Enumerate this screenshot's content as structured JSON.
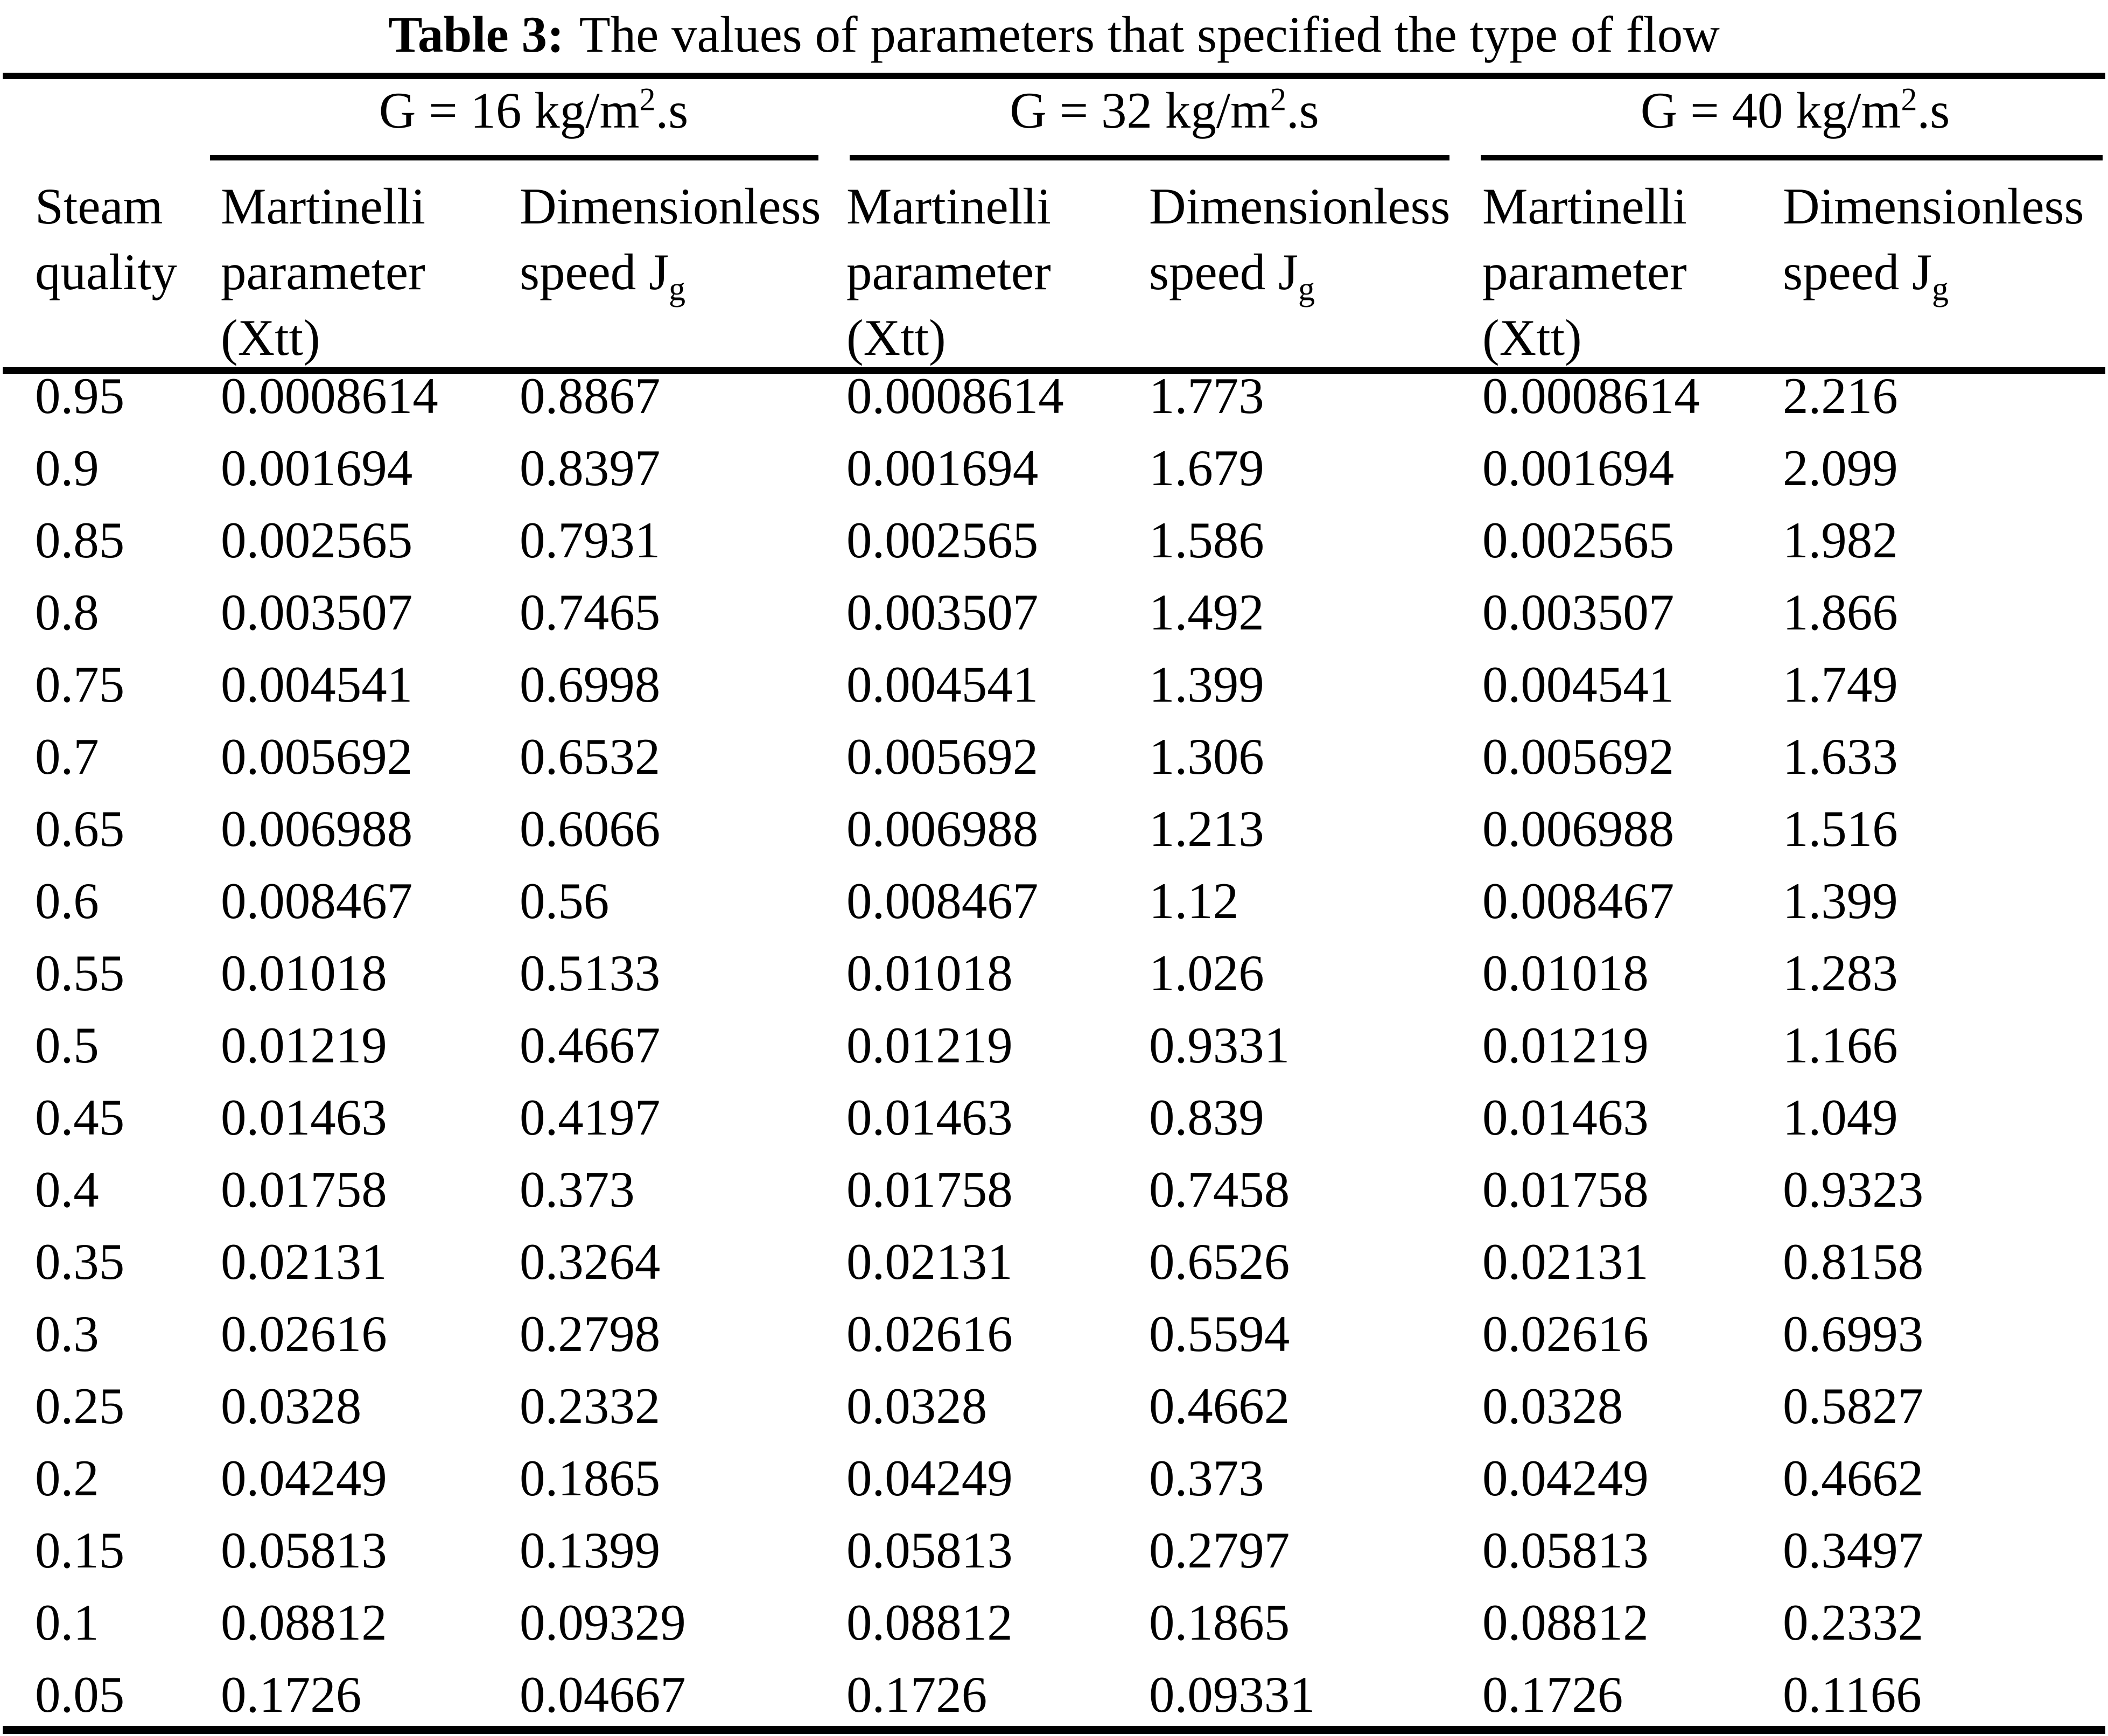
{
  "caption": {
    "label": "Table 3:",
    "text": "The values of parameters that specified the type of flow"
  },
  "colors": {
    "text": "#000000",
    "background": "#ffffff"
  },
  "table": {
    "corner_header": "Steam quality",
    "groups": [
      {
        "prefix": "G = 16 kg/m",
        "sup": "2",
        "suffix": ".s"
      },
      {
        "prefix": "G = 32 kg/m",
        "sup": "2",
        "suffix": ".s"
      },
      {
        "prefix": "G = 40 kg/m",
        "sup": "2",
        "suffix": ".s"
      }
    ],
    "subheaders": {
      "martinelli": "Martinelli parameter (Xtt)",
      "dimensionless_prefix": "Dimensionless speed J",
      "dimensionless_sub": "g"
    },
    "rows": [
      [
        "0.95",
        "0.0008614",
        "0.8867",
        "0.0008614",
        "1.773",
        "0.0008614",
        "2.216"
      ],
      [
        "0.9",
        "0.001694",
        "0.8397",
        "0.001694",
        "1.679",
        "0.001694",
        "2.099"
      ],
      [
        "0.85",
        "0.002565",
        "0.7931",
        "0.002565",
        "1.586",
        "0.002565",
        "1.982"
      ],
      [
        "0.8",
        "0.003507",
        "0.7465",
        "0.003507",
        "1.492",
        "0.003507",
        "1.866"
      ],
      [
        "0.75",
        "0.004541",
        "0.6998",
        "0.004541",
        "1.399",
        "0.004541",
        "1.749"
      ],
      [
        "0.7",
        "0.005692",
        "0.6532",
        "0.005692",
        "1.306",
        "0.005692",
        "1.633"
      ],
      [
        "0.65",
        "0.006988",
        "0.6066",
        "0.006988",
        "1.213",
        "0.006988",
        "1.516"
      ],
      [
        "0.6",
        "0.008467",
        "0.56",
        "0.008467",
        "1.12",
        "0.008467",
        "1.399"
      ],
      [
        "0.55",
        "0.01018",
        "0.5133",
        "0.01018",
        "1.026",
        "0.01018",
        "1.283"
      ],
      [
        "0.5",
        "0.01219",
        "0.4667",
        "0.01219",
        "0.9331",
        "0.01219",
        "1.166"
      ],
      [
        "0.45",
        "0.01463",
        "0.4197",
        "0.01463",
        "0.839",
        "0.01463",
        "1.049"
      ],
      [
        "0.4",
        "0.01758",
        "0.373",
        "0.01758",
        "0.7458",
        "0.01758",
        "0.9323"
      ],
      [
        "0.35",
        "0.02131",
        "0.3264",
        "0.02131",
        "0.6526",
        "0.02131",
        "0.8158"
      ],
      [
        "0.3",
        "0.02616",
        "0.2798",
        "0.02616",
        "0.5594",
        "0.02616",
        "0.6993"
      ],
      [
        "0.25",
        "0.0328",
        "0.2332",
        "0.0328",
        "0.4662",
        "0.0328",
        "0.5827"
      ],
      [
        "0.2",
        "0.04249",
        "0.1865",
        "0.04249",
        "0.373",
        "0.04249",
        "0.4662"
      ],
      [
        "0.15",
        "0.05813",
        "0.1399",
        "0.05813",
        "0.2797",
        "0.05813",
        "0.3497"
      ],
      [
        "0.1",
        "0.08812",
        "0.09329",
        "0.08812",
        "0.1865",
        "0.08812",
        "0.2332"
      ],
      [
        "0.05",
        "0.1726",
        "0.04667",
        "0.1726",
        "0.09331",
        "0.1726",
        "0.1166"
      ]
    ]
  }
}
